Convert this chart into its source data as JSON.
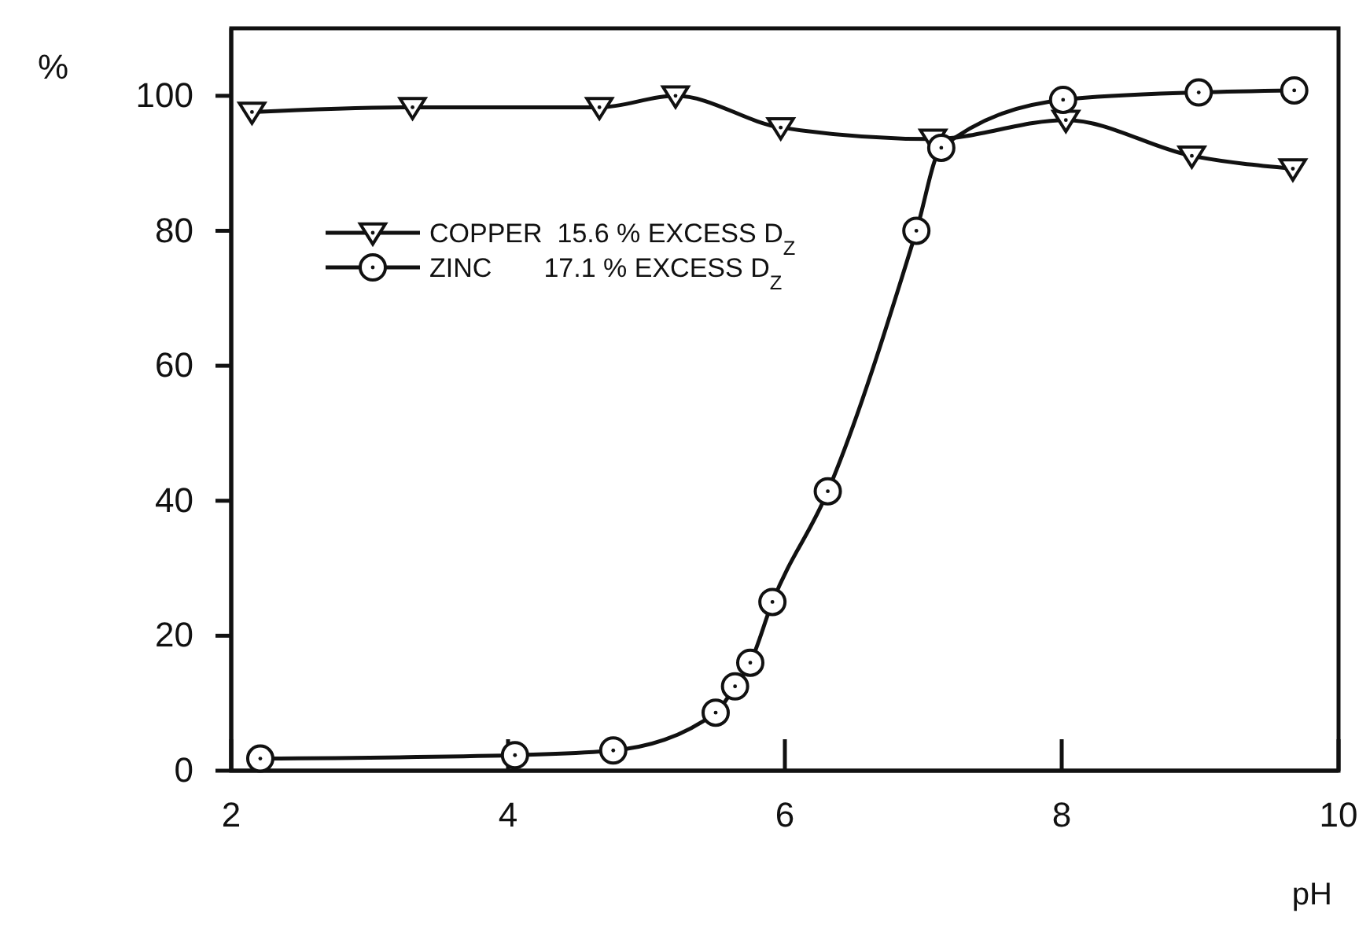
{
  "chart_data": {
    "type": "line",
    "xlabel": "pH",
    "ylabel": "%",
    "xlim": [
      2,
      10
    ],
    "ylim": [
      0,
      110
    ],
    "xticks": [
      2,
      4,
      6,
      8,
      10
    ],
    "yticks": [
      0,
      20,
      40,
      60,
      80,
      100
    ],
    "legend": "top left",
    "line_style": "solid",
    "series": [
      {
        "name": "COPPER  15.6 % EXCESS D$_{Z}$",
        "color": "#111111",
        "marker": "triangle",
        "x": [
          2.15,
          3.31,
          4.66,
          5.21,
          5.97,
          7.07,
          8.03,
          8.94,
          9.67
        ],
        "values": [
          97.6,
          98.3,
          98.3,
          100,
          95.3,
          93.6,
          96.4,
          91.1,
          89.2
        ]
      },
      {
        "name": "ZINC       17.1 % EXCESS D$_{Z}$",
        "color": "#111111",
        "marker": "circle",
        "x": [
          2.21,
          4.05,
          4.76,
          5.5,
          5.64,
          5.75,
          5.91,
          6.31,
          6.95,
          7.13,
          8.01,
          8.99,
          9.68
        ],
        "values": [
          1.8,
          2.3,
          3.0,
          8.6,
          12.5,
          16,
          25,
          41.4,
          80,
          92.3,
          99.4,
          100.5,
          100.8
        ]
      }
    ]
  }
}
